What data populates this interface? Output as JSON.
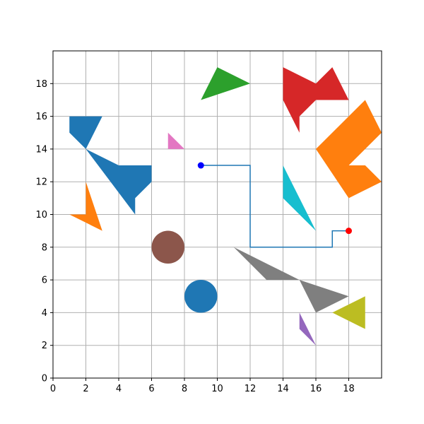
{
  "chart_data": {
    "type": "scatter",
    "title": "",
    "xlabel": "",
    "ylabel": "",
    "xlim": [
      0,
      20
    ],
    "ylim": [
      0,
      20
    ],
    "grid": true,
    "xticks": [
      0,
      2,
      4,
      6,
      8,
      10,
      12,
      14,
      16,
      18
    ],
    "yticks": [
      0,
      2,
      4,
      6,
      8,
      10,
      12,
      14,
      16,
      18
    ],
    "obstacles": [
      {
        "id": "blue-polygon",
        "color": "#1f77b4",
        "points": [
          [
            1,
            16
          ],
          [
            3,
            16
          ],
          [
            2,
            14
          ],
          [
            4,
            13
          ],
          [
            6,
            13
          ],
          [
            6,
            12
          ],
          [
            5,
            11
          ],
          [
            5,
            10
          ],
          [
            2,
            14
          ],
          [
            1,
            15
          ]
        ]
      },
      {
        "id": "green-triangle",
        "color": "#2ca02c",
        "points": [
          [
            9,
            17
          ],
          [
            10,
            19
          ],
          [
            12,
            18
          ]
        ]
      },
      {
        "id": "red-polygon",
        "color": "#d62728",
        "points": [
          [
            14,
            19
          ],
          [
            16,
            18
          ],
          [
            17,
            19
          ],
          [
            18,
            17
          ],
          [
            16,
            17
          ],
          [
            15,
            16
          ],
          [
            15,
            15
          ],
          [
            14,
            17
          ]
        ]
      },
      {
        "id": "orange-polygon-large",
        "color": "#ff7f0e",
        "points": [
          [
            16,
            14
          ],
          [
            19,
            17
          ],
          [
            20,
            15
          ],
          [
            18,
            13
          ],
          [
            19,
            13
          ],
          [
            20,
            12
          ],
          [
            18,
            11
          ]
        ]
      },
      {
        "id": "pink-triangle",
        "color": "#e377c2",
        "points": [
          [
            7,
            15
          ],
          [
            7,
            14
          ],
          [
            8,
            14
          ]
        ]
      },
      {
        "id": "cyan-triangle",
        "color": "#17becf",
        "points": [
          [
            14,
            13
          ],
          [
            14,
            11
          ],
          [
            16,
            9
          ]
        ]
      },
      {
        "id": "orange-polygon-small",
        "color": "#ff7f0e",
        "points": [
          [
            2,
            12
          ],
          [
            2,
            10
          ],
          [
            1,
            10
          ],
          [
            3,
            9
          ]
        ]
      },
      {
        "id": "gray-polygon",
        "color": "#7f7f7f",
        "points": [
          [
            11,
            8
          ],
          [
            13,
            6
          ],
          [
            15,
            6
          ],
          [
            16,
            4
          ],
          [
            18,
            5
          ],
          [
            15,
            6
          ]
        ]
      },
      {
        "id": "olive-triangle",
        "color": "#bcbd22",
        "points": [
          [
            17,
            4
          ],
          [
            19,
            5
          ],
          [
            19,
            3
          ]
        ]
      },
      {
        "id": "purple-triangle",
        "color": "#9467bd",
        "points": [
          [
            15,
            4
          ],
          [
            15,
            3
          ],
          [
            16,
            2
          ]
        ]
      }
    ],
    "circles": [
      {
        "id": "brown-circle",
        "color": "#8c564b",
        "center": [
          7,
          8
        ],
        "r": 1
      },
      {
        "id": "blue-circle",
        "color": "#1f77b4",
        "center": [
          9,
          5
        ],
        "r": 1
      }
    ],
    "path": {
      "color": "#1f77b4",
      "points": [
        [
          9,
          13
        ],
        [
          12,
          13
        ],
        [
          12,
          8
        ],
        [
          17,
          8
        ],
        [
          17,
          9
        ],
        [
          18,
          9
        ]
      ]
    },
    "start": {
      "x": 9,
      "y": 13,
      "color": "#0000ff"
    },
    "goal": {
      "x": 18,
      "y": 9,
      "color": "#ff0000"
    }
  }
}
